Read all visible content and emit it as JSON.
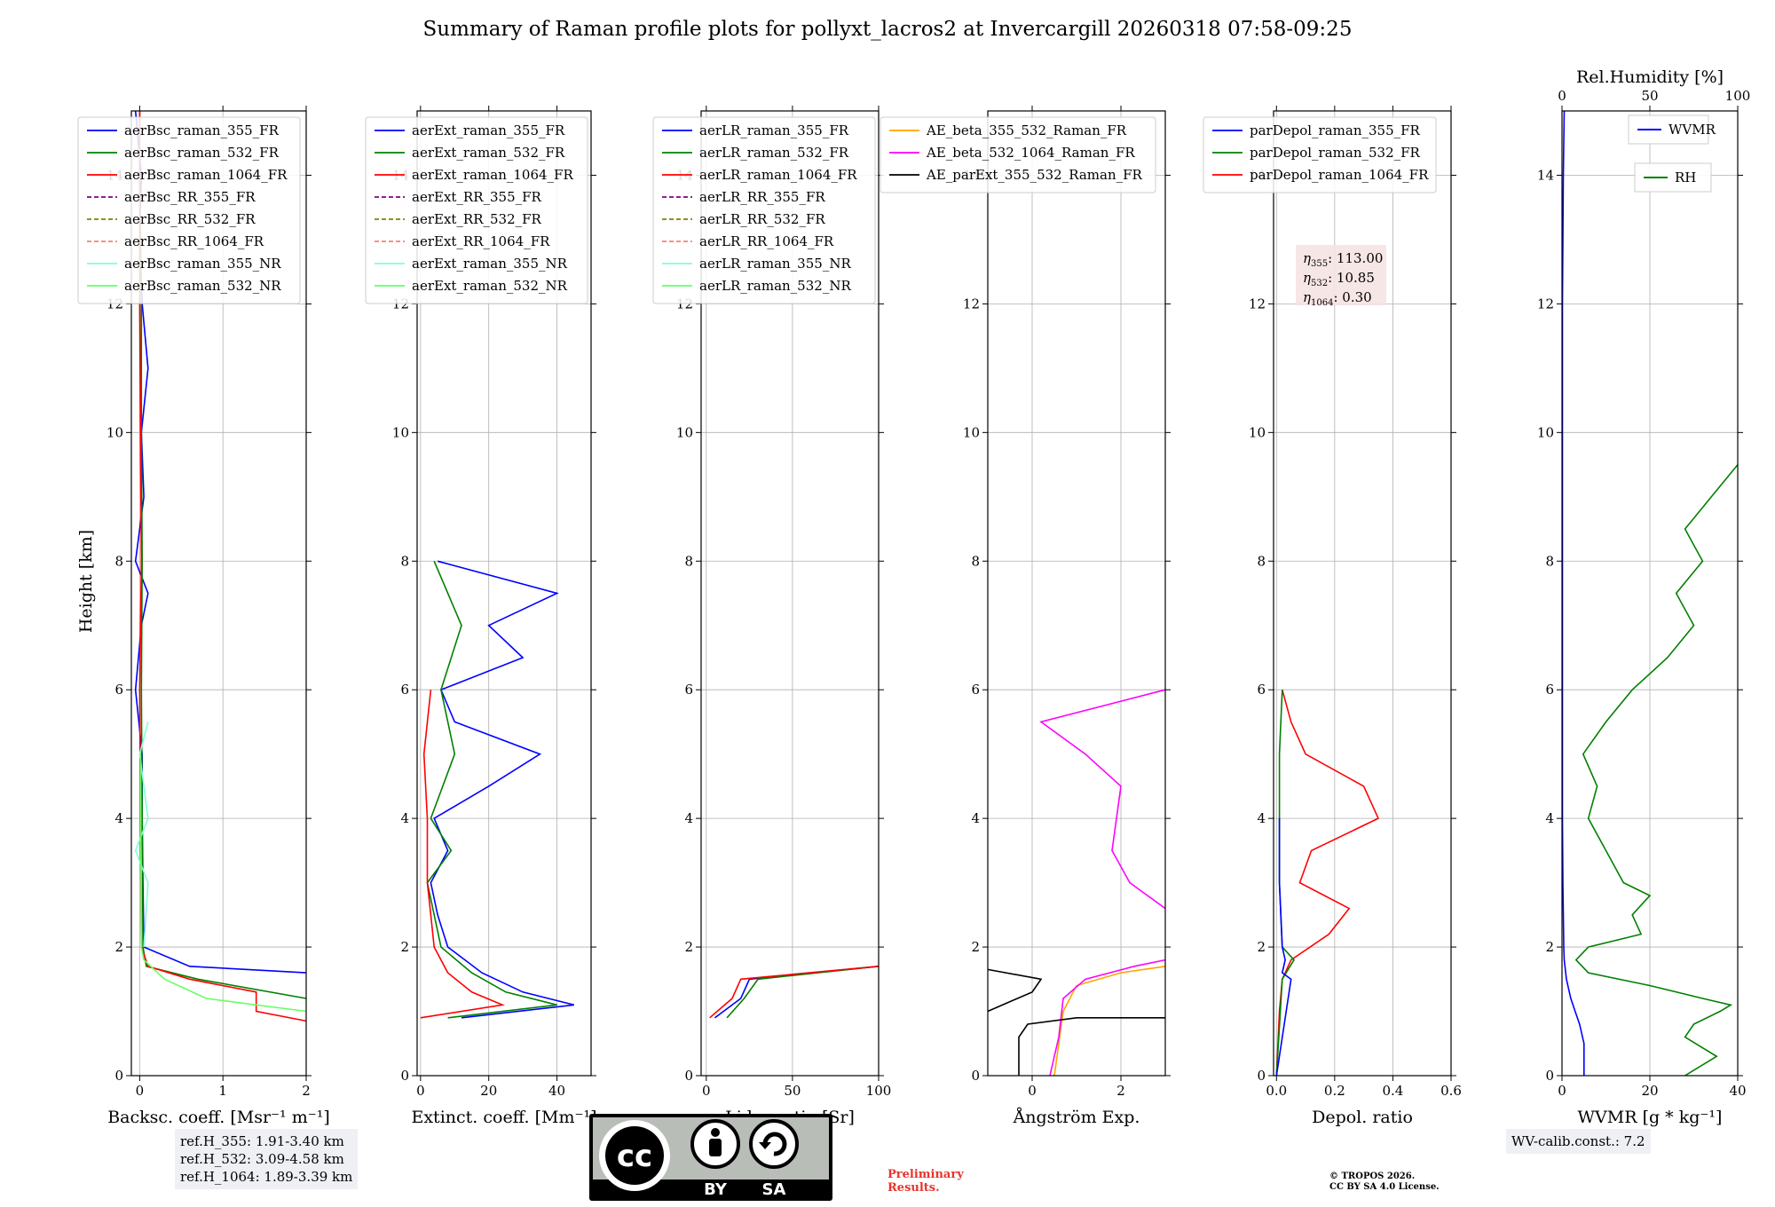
{
  "figure": {
    "title": "Summary of Raman profile plots for pollyxt_lacros2 at Invercargill 20260318 07:58-09:25",
    "ylabel": "Height [km]",
    "preliminary": [
      "Preliminary",
      "Results."
    ],
    "copyright": [
      "© TROPOS 2026.",
      "CC BY SA 4.0 License."
    ],
    "cc_badge": {
      "by": "BY",
      "sa": "SA",
      "cc": "cc"
    }
  },
  "ref_heights": [
    "ref.H_355: 1.91-3.40 km",
    "ref.H_532: 3.09-4.58 km",
    "ref.H_1064: 1.89-3.39 km"
  ],
  "wv_calib": "WV-calib.const.: 7.2",
  "eta_labels": [
    {
      "sym": "η",
      "sub": "355",
      "value": ": 113.00"
    },
    {
      "sym": "η",
      "sub": "532",
      "value": ": 10.85"
    },
    {
      "sym": "η",
      "sub": "1064",
      "value": ": 0.30"
    }
  ],
  "colors": {
    "blue": "#0000ff",
    "green": "#008000",
    "red": "#ff0000",
    "purple": "#800080",
    "olive": "#808000",
    "salmon": "#fa8072",
    "cyan": "#7fffd4",
    "lightgreen": "#66ff66",
    "orange": "#ffa500",
    "magenta": "#ff00ff",
    "black": "#000000"
  },
  "chart_data": [
    {
      "type": "line",
      "id": "bsc",
      "xlabel": "Backsc. coeff. [Msr⁻¹ m⁻¹]",
      "xlim": [
        -0.1,
        2
      ],
      "ylim": [
        0,
        15
      ],
      "xticks": [
        0,
        1,
        2
      ],
      "yticks": [
        0,
        2,
        4,
        6,
        8,
        10,
        12,
        14
      ],
      "legend": [
        {
          "name": "aerBsc_raman_355_FR",
          "color": "blue",
          "dash": false
        },
        {
          "name": "aerBsc_raman_532_FR",
          "color": "green",
          "dash": false
        },
        {
          "name": "aerBsc_raman_1064_FR",
          "color": "red",
          "dash": false
        },
        {
          "name": "aerBsc_RR_355_FR",
          "color": "purple",
          "dash": true
        },
        {
          "name": "aerBsc_RR_532_FR",
          "color": "olive",
          "dash": true
        },
        {
          "name": "aerBsc_RR_1064_FR",
          "color": "salmon",
          "dash": true
        },
        {
          "name": "aerBsc_raman_355_NR",
          "color": "cyan",
          "dash": false
        },
        {
          "name": "aerBsc_raman_532_NR",
          "color": "lightgreen",
          "dash": false
        }
      ],
      "series": [
        {
          "name": "aerBsc_raman_355_FR",
          "color": "blue",
          "y": [
            1.6,
            1.7,
            2.0,
            3.0,
            4.0,
            5.0,
            6.0,
            7.0,
            7.5,
            8.0,
            9.0,
            10.0,
            11.0,
            12.0,
            13.0,
            14.0,
            15.0
          ],
          "x": [
            2.0,
            0.6,
            0.05,
            0.04,
            0.03,
            0.03,
            -0.05,
            0.02,
            0.1,
            -0.05,
            0.05,
            0.02,
            0.1,
            0.03,
            0.0,
            0.02,
            -0.05
          ]
        },
        {
          "name": "aerBsc_raman_532_FR",
          "color": "green",
          "y": [
            1.2,
            1.5,
            1.7,
            2.0,
            4.0,
            6.0,
            8.0,
            10.0,
            12.0,
            14.0,
            15.0
          ],
          "x": [
            2.0,
            0.7,
            0.08,
            0.04,
            0.03,
            0.02,
            0.03,
            0.02,
            0.02,
            0.0,
            0.0
          ]
        },
        {
          "name": "aerBsc_raman_1064_FR",
          "color": "red",
          "y": [
            0.85,
            1.0,
            1.3,
            1.5,
            1.7,
            2.0,
            4.0,
            6.0,
            8.0,
            10.0,
            12.0,
            15.0
          ],
          "x": [
            2.0,
            1.4,
            1.4,
            0.6,
            0.1,
            0.02,
            0.01,
            0.0,
            0.02,
            0.01,
            0.0,
            0.0
          ]
        },
        {
          "name": "aerBsc_raman_355_NR",
          "color": "cyan",
          "y": [
            2.0,
            3.0,
            3.5,
            4.0,
            4.5,
            5.0,
            5.5
          ],
          "x": [
            0.05,
            0.1,
            -0.05,
            0.1,
            0.05,
            0.0,
            0.1
          ]
        },
        {
          "name": "aerBsc_raman_532_NR",
          "color": "lightgreen",
          "y": [
            1.0,
            1.2,
            1.5,
            1.8,
            2.0,
            5.0
          ],
          "x": [
            2.0,
            0.8,
            0.3,
            0.05,
            0.02,
            0.01
          ]
        }
      ]
    },
    {
      "type": "line",
      "id": "ext",
      "xlabel": "Extinct. coeff. [Mm⁻¹]",
      "xlim": [
        -1,
        50
      ],
      "ylim": [
        0,
        15
      ],
      "xticks": [
        0,
        20,
        40
      ],
      "yticks": [
        0,
        2,
        4,
        6,
        8,
        10,
        12,
        14
      ],
      "legend": [
        {
          "name": "aerExt_raman_355_FR",
          "color": "blue",
          "dash": false
        },
        {
          "name": "aerExt_raman_532_FR",
          "color": "green",
          "dash": false
        },
        {
          "name": "aerExt_raman_1064_FR",
          "color": "red",
          "dash": false
        },
        {
          "name": "aerExt_RR_355_FR",
          "color": "purple",
          "dash": true
        },
        {
          "name": "aerExt_RR_532_FR",
          "color": "olive",
          "dash": true
        },
        {
          "name": "aerExt_RR_1064_FR",
          "color": "salmon",
          "dash": true
        },
        {
          "name": "aerExt_raman_355_NR",
          "color": "cyan",
          "dash": false
        },
        {
          "name": "aerExt_raman_532_NR",
          "color": "lightgreen",
          "dash": false
        }
      ],
      "series": [
        {
          "name": "aerExt_raman_355_FR",
          "color": "blue",
          "y": [
            0.9,
            1.1,
            1.3,
            1.6,
            2.0,
            2.5,
            3.0,
            3.5,
            4.0,
            4.5,
            5.0,
            5.5,
            6.0,
            6.5,
            7.0,
            7.5,
            8.0
          ],
          "x": [
            12,
            45,
            30,
            18,
            8,
            5,
            3,
            8,
            4,
            20,
            35,
            10,
            6,
            30,
            20,
            40,
            5
          ]
        },
        {
          "name": "aerExt_raman_532_FR",
          "color": "green",
          "y": [
            0.9,
            1.1,
            1.3,
            1.6,
            2.0,
            2.5,
            3.0,
            3.5,
            4.0,
            5.0,
            6.0,
            7.0,
            8.0
          ],
          "x": [
            8,
            40,
            25,
            15,
            6,
            4,
            2,
            9,
            3,
            10,
            6,
            12,
            4
          ]
        },
        {
          "name": "aerExt_raman_1064_FR",
          "color": "red",
          "y": [
            0.9,
            1.1,
            1.3,
            1.6,
            2.0,
            2.5,
            3.0,
            4.0,
            5.0,
            6.0
          ],
          "x": [
            0,
            24,
            15,
            8,
            4,
            3,
            2,
            2,
            1,
            3
          ]
        }
      ]
    },
    {
      "type": "line",
      "id": "lr",
      "xlabel": "Lidar ratio [Sr]",
      "xlim": [
        -3,
        100
      ],
      "ylim": [
        0,
        15
      ],
      "xticks": [
        0,
        50,
        100
      ],
      "yticks": [
        0,
        2,
        4,
        6,
        8,
        10,
        12,
        14
      ],
      "legend": [
        {
          "name": "aerLR_raman_355_FR",
          "color": "blue",
          "dash": false
        },
        {
          "name": "aerLR_raman_532_FR",
          "color": "green",
          "dash": false
        },
        {
          "name": "aerLR_raman_1064_FR",
          "color": "red",
          "dash": false
        },
        {
          "name": "aerLR_RR_355_FR",
          "color": "purple",
          "dash": true
        },
        {
          "name": "aerLR_RR_532_FR",
          "color": "olive",
          "dash": true
        },
        {
          "name": "aerLR_RR_1064_FR",
          "color": "salmon",
          "dash": true
        },
        {
          "name": "aerLR_raman_355_NR",
          "color": "cyan",
          "dash": false
        },
        {
          "name": "aerLR_raman_532_NR",
          "color": "lightgreen",
          "dash": false
        }
      ],
      "series": [
        {
          "name": "aerLR_raman_355_FR",
          "color": "blue",
          "y": [
            0.9,
            1.2,
            1.5,
            1.7
          ],
          "x": [
            5,
            20,
            25,
            100
          ]
        },
        {
          "name": "aerLR_raman_532_FR",
          "color": "green",
          "y": [
            0.9,
            1.2,
            1.5,
            1.7
          ],
          "x": [
            12,
            22,
            30,
            100
          ]
        },
        {
          "name": "aerLR_raman_1064_FR",
          "color": "red",
          "y": [
            0.9,
            1.2,
            1.5,
            1.7
          ],
          "x": [
            2,
            15,
            20,
            100
          ]
        }
      ]
    },
    {
      "type": "line",
      "id": "ae",
      "xlabel": "Ångström Exp.",
      "xlim": [
        -1,
        3
      ],
      "ylim": [
        0,
        15
      ],
      "xticks": [
        0,
        2
      ],
      "yticks": [
        0,
        2,
        4,
        6,
        8,
        10,
        12,
        14
      ],
      "legend": [
        {
          "name": "AE_beta_355_532_Raman_FR",
          "color": "orange",
          "dash": false
        },
        {
          "name": "AE_beta_532_1064_Raman_FR",
          "color": "magenta",
          "dash": false
        },
        {
          "name": "AE_parExt_355_532_Raman_FR",
          "color": "black",
          "dash": false
        }
      ],
      "series": [
        {
          "name": "AE_beta_355_532_Raman_FR",
          "color": "orange",
          "y": [
            0.0,
            0.5,
            1.0,
            1.4,
            1.6,
            1.7
          ],
          "x": [
            0.5,
            0.6,
            0.7,
            1.0,
            2.0,
            3.0
          ]
        },
        {
          "name": "AE_beta_532_1064_Raman_FR",
          "color": "magenta",
          "y": [
            0.0,
            0.6,
            1.2,
            1.5,
            1.7,
            1.8
          ],
          "x": [
            0.4,
            0.6,
            0.7,
            1.2,
            2.3,
            3.0
          ]
        },
        {
          "name": "AE_beta_532_1064_Raman_FR",
          "color": "magenta",
          "y": [
            2.6,
            3.0,
            3.5,
            4.0,
            4.5,
            5.0,
            5.5,
            6.0
          ],
          "x": [
            3.0,
            2.2,
            1.8,
            1.9,
            2.0,
            1.2,
            0.2,
            3.0
          ]
        },
        {
          "name": "AE_parExt_355_532_Raman_FR",
          "color": "black",
          "y": [
            0.0,
            0.6,
            0.8,
            0.9,
            0.9
          ],
          "x": [
            -0.3,
            -0.3,
            -0.1,
            1.0,
            3.0
          ]
        },
        {
          "name": "AE_parExt_355_532_Raman_FR",
          "color": "black",
          "y": [
            1.0,
            1.3,
            1.5,
            1.65
          ],
          "x": [
            -1.0,
            0.0,
            0.2,
            -1.0
          ]
        }
      ]
    },
    {
      "type": "line",
      "id": "dep",
      "xlabel": "Depol. ratio",
      "xlim": [
        -0.01,
        0.6
      ],
      "ylim": [
        0,
        15
      ],
      "xticks": [
        0.0,
        0.2,
        0.4,
        0.6
      ],
      "yticks": [
        0,
        2,
        4,
        6,
        8,
        10,
        12,
        14
      ],
      "legend": [
        {
          "name": "parDepol_raman_355_FR",
          "color": "blue",
          "dash": false
        },
        {
          "name": "parDepol_raman_532_FR",
          "color": "green",
          "dash": false
        },
        {
          "name": "parDepol_raman_1064_FR",
          "color": "red",
          "dash": false
        }
      ],
      "series": [
        {
          "name": "parDepol_raman_1064_FR",
          "color": "red",
          "y": [
            0.0,
            1.0,
            1.5,
            1.8,
            2.2,
            2.6,
            3.0,
            3.5,
            4.0,
            4.5,
            5.0,
            5.5,
            6.0
          ],
          "x": [
            0.0,
            0.01,
            0.02,
            0.05,
            0.18,
            0.25,
            0.08,
            0.12,
            0.35,
            0.3,
            0.1,
            0.05,
            0.02
          ]
        },
        {
          "name": "parDepol_raman_532_FR",
          "color": "green",
          "y": [
            0.0,
            1.5,
            1.8,
            2.0,
            3.0,
            4.0,
            5.0,
            6.0
          ],
          "x": [
            0.0,
            0.02,
            0.06,
            0.02,
            0.01,
            0.01,
            0.01,
            0.02
          ]
        },
        {
          "name": "parDepol_raman_355_FR",
          "color": "blue",
          "y": [
            0.0,
            1.5,
            1.6,
            1.8,
            2.0,
            3.0,
            4.0
          ],
          "x": [
            0.0,
            0.05,
            0.02,
            0.03,
            0.02,
            0.01,
            0.01
          ]
        }
      ]
    },
    {
      "type": "line",
      "id": "wv",
      "xlabel": "WVMR [g * kg⁻¹]",
      "top_label": "Rel.Humidity [%]",
      "xlim": [
        0,
        40
      ],
      "top_xlim": [
        0,
        100
      ],
      "ylim": [
        0,
        15
      ],
      "xticks": [
        0,
        20,
        40
      ],
      "top_xticks": [
        0,
        50,
        100
      ],
      "yticks": [
        0,
        2,
        4,
        6,
        8,
        10,
        12,
        14
      ],
      "legend": [
        {
          "name": "WVMR",
          "color": "blue",
          "dash": false
        },
        {
          "name": "RH",
          "color": "green",
          "dash": false
        }
      ],
      "series": [
        {
          "name": "WVMR",
          "color": "blue",
          "y": [
            0.0,
            0.5,
            0.8,
            1.0,
            1.2,
            1.5,
            1.8,
            2.0,
            2.5,
            3.0,
            4.0,
            6.0,
            8.0,
            10.0,
            12.0,
            14.0,
            15.0
          ],
          "x": [
            5,
            5,
            4,
            3,
            2,
            1,
            0.5,
            0.4,
            0.3,
            0.2,
            0.1,
            0.1,
            0.1,
            0.1,
            0.1,
            0.3,
            0.5
          ]
        },
        {
          "name": "RH",
          "color": "green",
          "top_axis": true,
          "y": [
            0.0,
            0.3,
            0.6,
            0.8,
            1.0,
            1.1,
            1.2,
            1.4,
            1.6,
            1.8,
            2.0,
            2.2,
            2.5,
            2.8,
            3.0,
            3.5,
            4.0,
            4.5,
            5.0,
            5.5,
            6.0,
            6.5,
            7.0,
            7.5,
            8.0,
            8.5,
            9.0,
            9.5
          ],
          "x": [
            70,
            88,
            70,
            75,
            90,
            96,
            80,
            50,
            15,
            8,
            15,
            45,
            40,
            50,
            35,
            25,
            15,
            20,
            12,
            25,
            40,
            60,
            75,
            65,
            80,
            70,
            85,
            100
          ]
        }
      ]
    }
  ]
}
